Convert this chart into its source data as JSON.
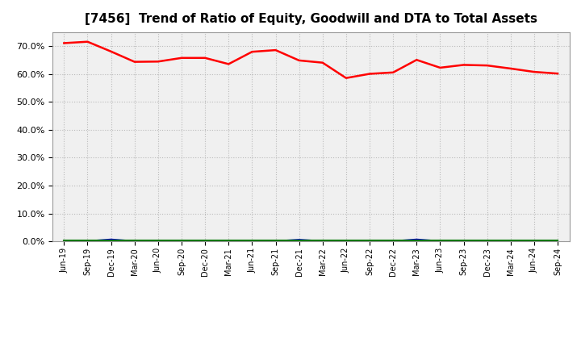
{
  "title": "[7456]  Trend of Ratio of Equity, Goodwill and DTA to Total Assets",
  "x_labels": [
    "Jun-19",
    "Sep-19",
    "Dec-19",
    "Mar-20",
    "Jun-20",
    "Sep-20",
    "Dec-20",
    "Mar-21",
    "Jun-21",
    "Sep-21",
    "Dec-21",
    "Mar-22",
    "Jun-22",
    "Sep-22",
    "Dec-22",
    "Mar-23",
    "Jun-23",
    "Sep-23",
    "Dec-23",
    "Mar-24",
    "Jun-24",
    "Sep-24"
  ],
  "equity": [
    0.71,
    0.715,
    0.68,
    0.643,
    0.644,
    0.657,
    0.657,
    0.635,
    0.679,
    0.685,
    0.648,
    0.64,
    0.585,
    0.6,
    0.605,
    0.65,
    0.622,
    0.632,
    0.63,
    0.619,
    0.607,
    0.601
  ],
  "goodwill": [
    0.001,
    0.001,
    0.007,
    0.001,
    0.001,
    0.001,
    0.001,
    0.001,
    0.001,
    0.001,
    0.006,
    0.001,
    0.001,
    0.001,
    0.001,
    0.007,
    0.001,
    0.001,
    0.001,
    0.001,
    0.001,
    0.001
  ],
  "dta": [
    0.004,
    0.004,
    0.004,
    0.004,
    0.004,
    0.004,
    0.004,
    0.004,
    0.004,
    0.004,
    0.004,
    0.004,
    0.004,
    0.004,
    0.004,
    0.004,
    0.004,
    0.004,
    0.004,
    0.004,
    0.004,
    0.004
  ],
  "equity_color": "#ff0000",
  "goodwill_color": "#0000cc",
  "dta_color": "#007700",
  "ylim": [
    0.0,
    0.75
  ],
  "yticks": [
    0.0,
    0.1,
    0.2,
    0.3,
    0.4,
    0.5,
    0.6,
    0.7
  ],
  "background_color": "#ffffff",
  "plot_bg_color": "#f0f0f0",
  "grid_color": "#bbbbbb",
  "title_fontsize": 11
}
